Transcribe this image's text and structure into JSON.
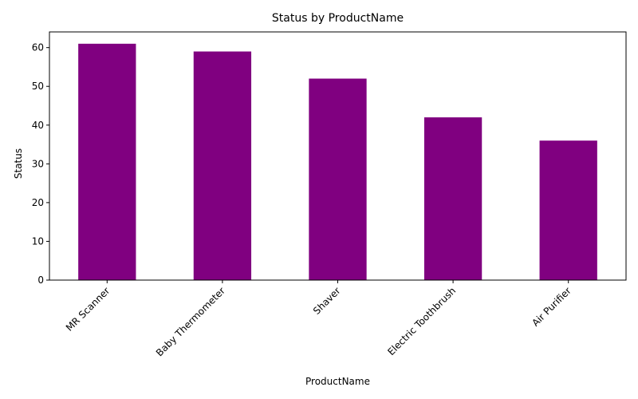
{
  "chart_data": {
    "type": "bar",
    "title": "Status by ProductName",
    "xlabel": "ProductName",
    "ylabel": "Status",
    "categories": [
      "MR Scanner",
      "Baby Thermometer",
      "Shaver",
      "Electric Toothbrush",
      "Air Purifier"
    ],
    "values": [
      61,
      59,
      52,
      42,
      36
    ],
    "ylim": [
      0,
      64.05
    ],
    "yticks": [
      0,
      10,
      20,
      30,
      40,
      50,
      60
    ],
    "grid": false,
    "legend": "none",
    "bar_color": "#800080"
  }
}
